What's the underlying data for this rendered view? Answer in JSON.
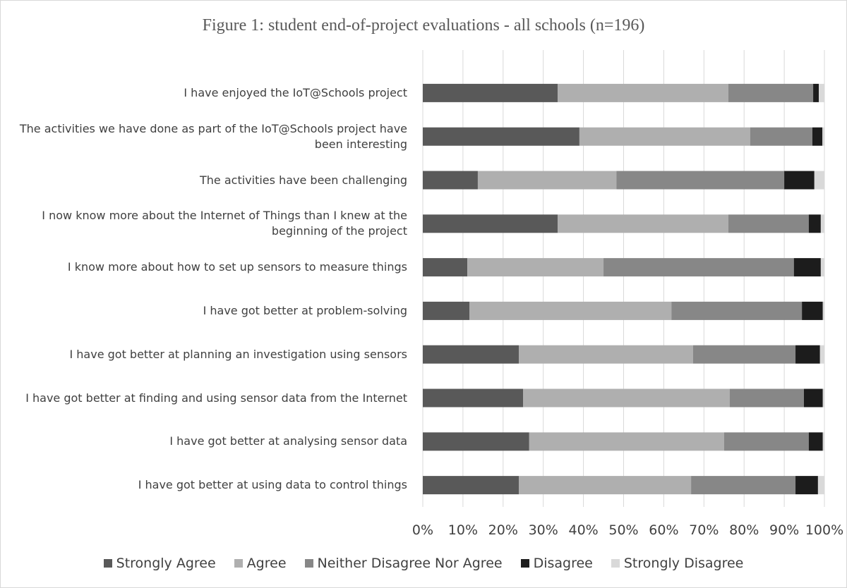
{
  "chart_data": {
    "type": "stacked_barh",
    "title": "Figure 1: student end-of-project evaluations - all schools (n=196)",
    "categories": [
      "I have enjoyed the IoT@Schools project",
      "The activities we have done as part of the IoT@Schools project have been interesting",
      "The activities have been challenging",
      "I now know more about the Internet of Things than I knew at the beginning of the project",
      "I know more about how to set up sensors to measure things",
      "I have got better at problem-solving",
      "I have got better at planning an investigation using sensors",
      "I have got better at finding and using sensor data from the Internet",
      "I have got better at analysing sensor data",
      "I have got better at using data to control things"
    ],
    "series": [
      {
        "name": "Strongly Agree",
        "color": "#595959",
        "values": [
          33.6,
          39.0,
          13.7,
          33.6,
          11.1,
          11.6,
          23.9,
          25.0,
          26.5,
          23.9
        ]
      },
      {
        "name": "Agree",
        "color": "#afafaf",
        "values": [
          42.5,
          42.5,
          34.5,
          42.5,
          33.9,
          50.3,
          43.4,
          51.4,
          48.5,
          42.9
        ]
      },
      {
        "name": "Neither Disagree Nor Agree",
        "color": "#878787",
        "values": [
          21.1,
          15.5,
          41.8,
          20.0,
          47.4,
          32.5,
          25.5,
          18.5,
          21.1,
          26.0
        ]
      },
      {
        "name": "Disagree",
        "color": "#1c1c1c",
        "values": [
          1.4,
          2.5,
          7.5,
          3.0,
          6.7,
          5.2,
          6.1,
          4.7,
          3.5,
          5.6
        ]
      },
      {
        "name": "Strongly Disagree",
        "color": "#d9d9d9",
        "values": [
          1.4,
          0.5,
          2.5,
          0.9,
          0.9,
          0.4,
          1.1,
          0.4,
          0.4,
          1.6
        ]
      }
    ],
    "xlim": [
      0,
      100
    ],
    "xticks": [
      {
        "value": 0,
        "label": "0%"
      },
      {
        "value": 10,
        "label": "10%"
      },
      {
        "value": 20,
        "label": "20%"
      },
      {
        "value": 30,
        "label": "30%"
      },
      {
        "value": 40,
        "label": "40%"
      },
      {
        "value": 50,
        "label": "50%"
      },
      {
        "value": 60,
        "label": "60%"
      },
      {
        "value": 70,
        "label": "70%"
      },
      {
        "value": 80,
        "label": "80%"
      },
      {
        "value": 90,
        "label": "90%"
      },
      {
        "value": 100,
        "label": "100%"
      }
    ],
    "grid": true,
    "legend": "bottom"
  }
}
